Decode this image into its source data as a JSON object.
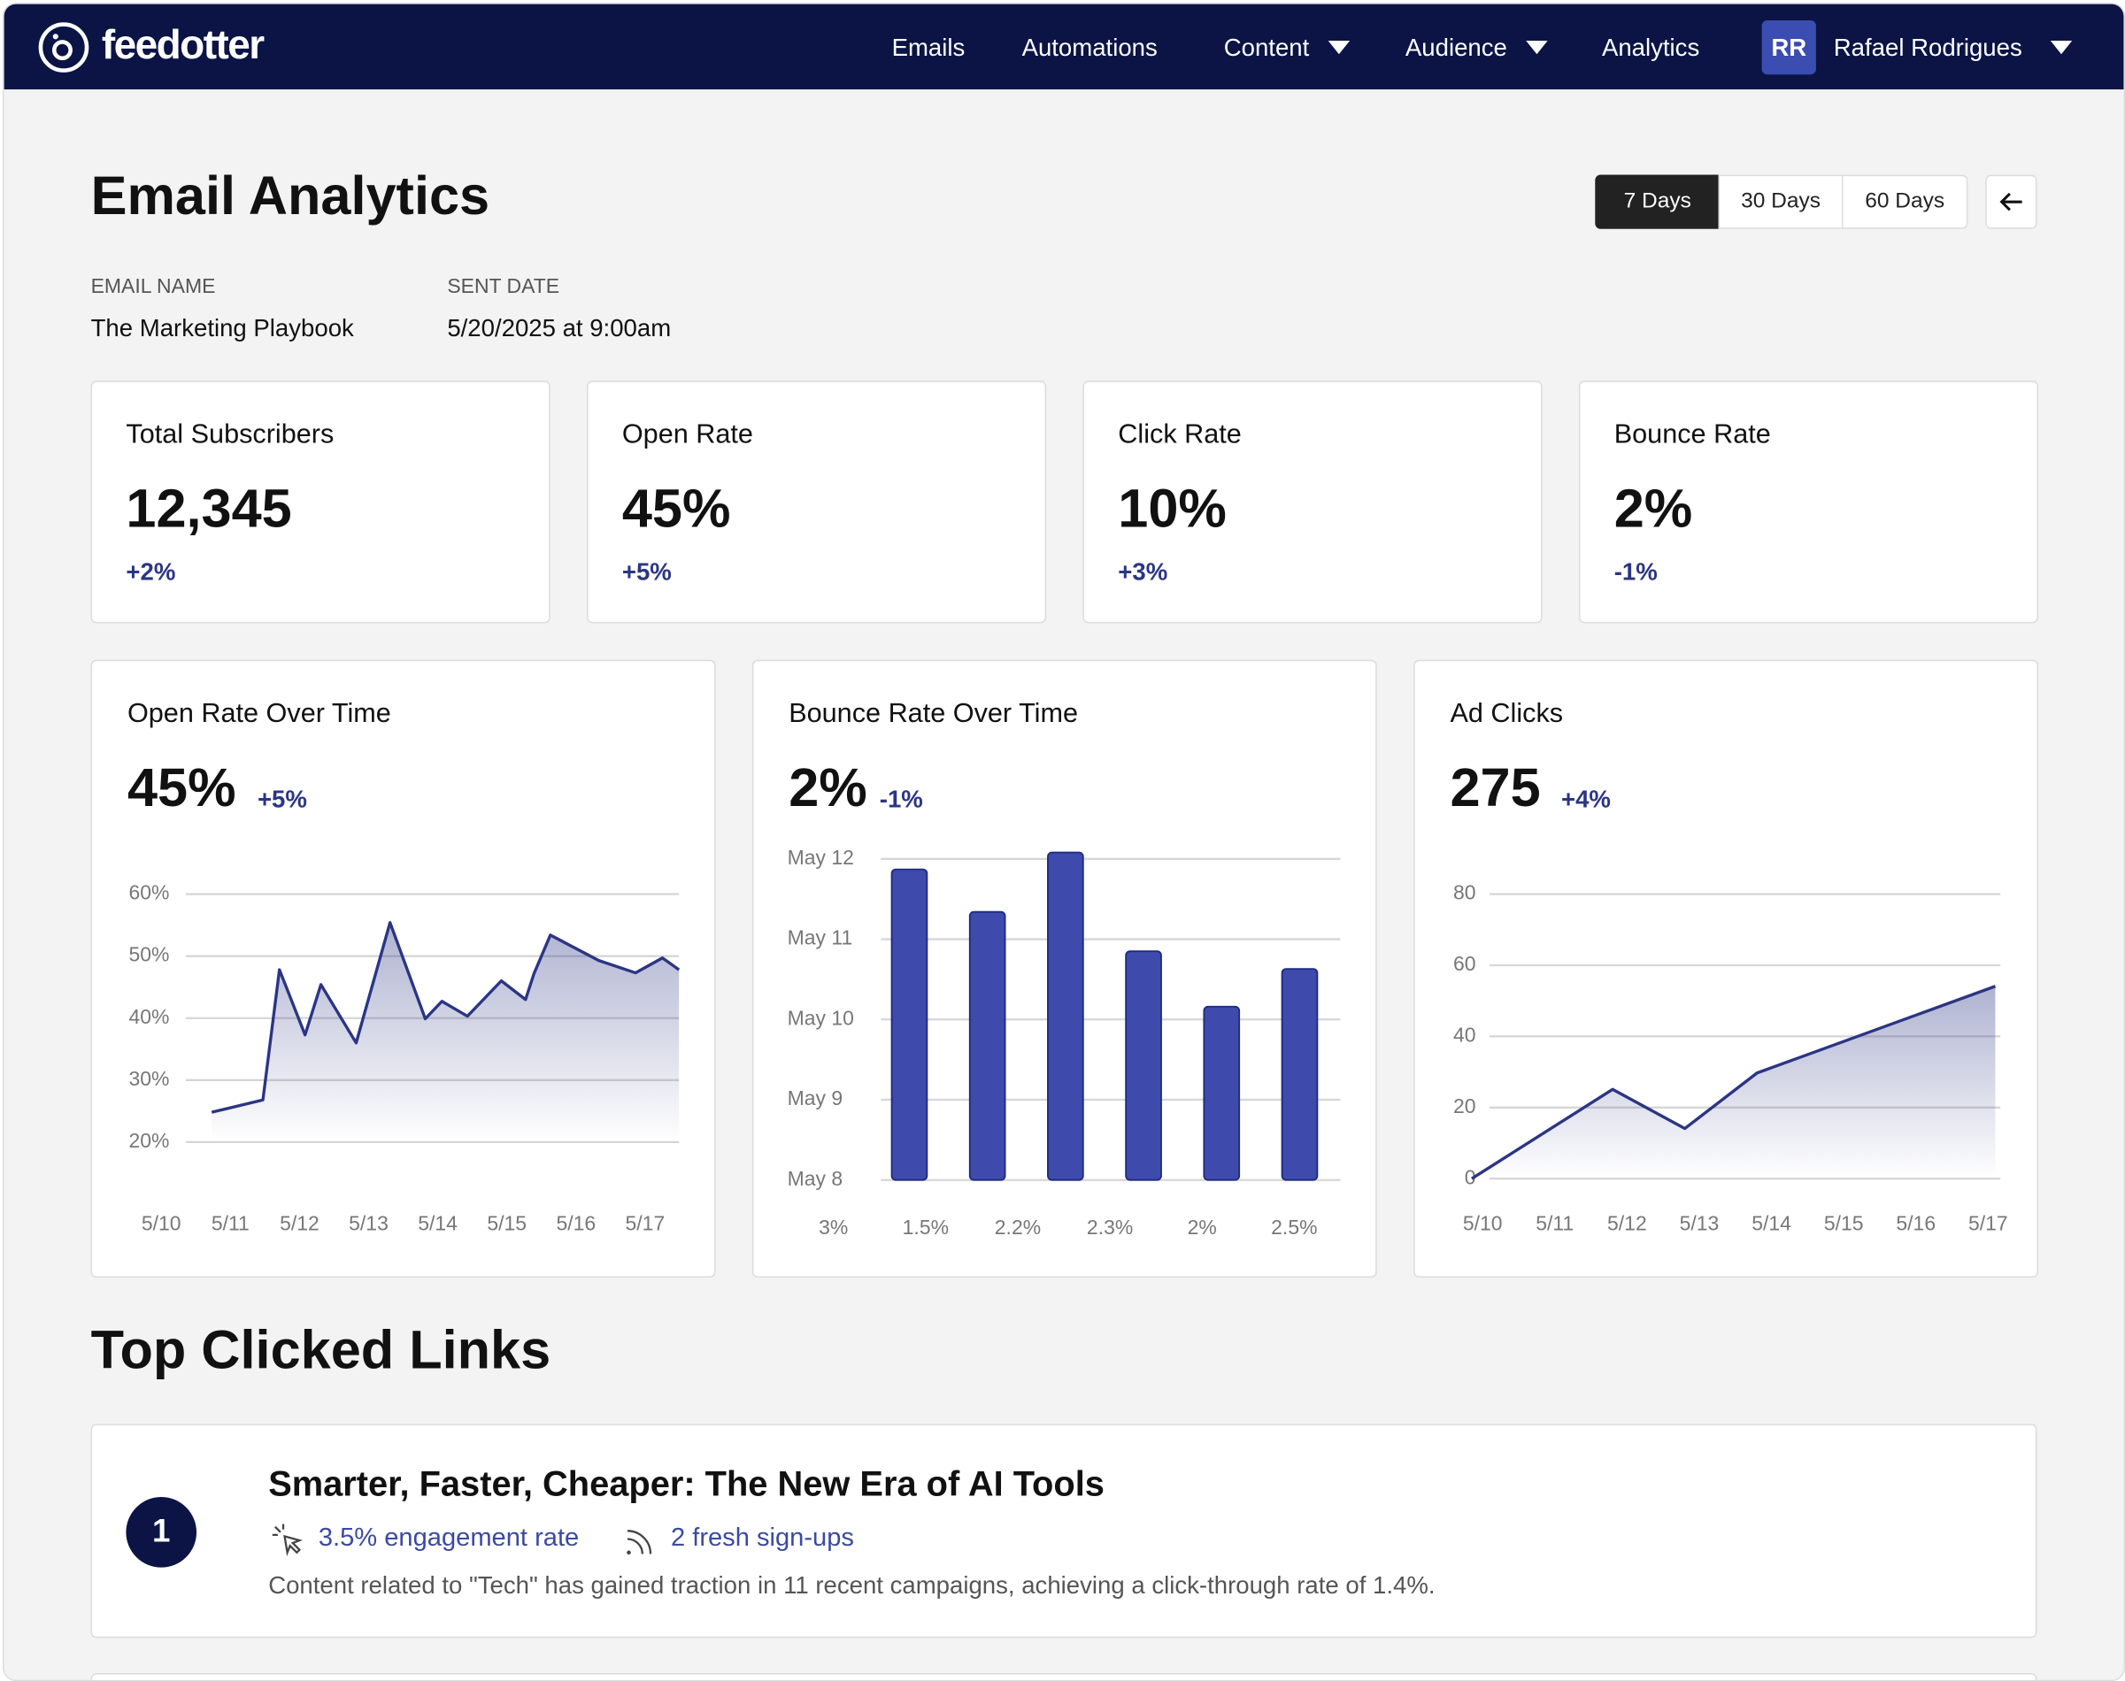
{
  "nav": {
    "brand": "feedotter",
    "items": [
      "Emails",
      "Automations",
      "Content",
      "Audience",
      "Analytics"
    ],
    "user_initials": "RR",
    "user_name": "Rafael Rodrigues"
  },
  "header": {
    "title": "Email Analytics",
    "ranges": [
      "7 Days",
      "30 Days",
      "60 Days"
    ],
    "meta": [
      {
        "label": "EMAIL NAME",
        "value": "The Marketing Playbook"
      },
      {
        "label": "SENT DATE",
        "value": "5/20/2025 at 9:00am"
      }
    ]
  },
  "metrics": [
    {
      "label": "Total Subscribers",
      "value": "12,345",
      "change": "+2%"
    },
    {
      "label": "Open Rate",
      "value": "45%",
      "change": "+5%"
    },
    {
      "label": "Click Rate",
      "value": "10%",
      "change": "+3%"
    },
    {
      "label": "Bounce Rate",
      "value": "2%",
      "change": "-1%"
    }
  ],
  "chart_data": [
    {
      "type": "line",
      "title": "Open Rate Over Time",
      "value": "45%",
      "change": "+5%",
      "color": "#2b3584",
      "x": [
        0.73,
        1.47,
        1.71,
        2.08,
        2.31,
        2.82,
        3.31,
        3.82,
        4.06,
        4.43,
        4.92,
        5.27,
        5.39,
        5.63,
        6.33,
        6.86,
        7.25,
        7.49
      ],
      "values": [
        24.8,
        26.8,
        47.8,
        37.3,
        45.4,
        36.0,
        55.4,
        39.9,
        42.7,
        40.3,
        46.0,
        43.0,
        47.1,
        53.4,
        49.3,
        47.3,
        49.7,
        47.8
      ],
      "xlim": [
        0,
        7.5
      ],
      "xticks": [
        {
          "value": 0,
          "label": "5/10"
        },
        {
          "value": 1,
          "label": "5/11"
        },
        {
          "value": 2,
          "label": "5/12"
        },
        {
          "value": 3,
          "label": "5/13"
        },
        {
          "value": 4,
          "label": "5/14"
        },
        {
          "value": 5,
          "label": "5/15"
        },
        {
          "value": 6,
          "label": "5/16"
        },
        {
          "value": 7,
          "label": "5/17"
        }
      ],
      "ylim": [
        20,
        60
      ],
      "yticks": [
        {
          "value": 20,
          "label": "20%"
        },
        {
          "value": 30,
          "label": "30%"
        },
        {
          "value": 40,
          "label": "40%"
        },
        {
          "value": 50,
          "label": "50%"
        },
        {
          "value": 60,
          "label": "60%"
        }
      ],
      "grid": true
    },
    {
      "type": "bar",
      "title": "Bounce Rate Over Time",
      "value": "2%",
      "change": "-1%",
      "color": "#3f4aad",
      "categories": [
        "3%",
        "1.5%",
        "2.2%",
        "2.3%",
        "2%",
        "2.5%"
      ],
      "values": [
        11.87,
        11.34,
        12.08,
        10.85,
        10.16,
        10.63
      ],
      "ylim": [
        8,
        12
      ],
      "yticks": [
        {
          "value": 8,
          "label": "May 8"
        },
        {
          "value": 9,
          "label": "May 9"
        },
        {
          "value": 10,
          "label": "May 10"
        },
        {
          "value": 11,
          "label": "May 11"
        },
        {
          "value": 12,
          "label": "May 12"
        }
      ],
      "grid": true
    },
    {
      "type": "line",
      "title": "Ad Clicks",
      "value": "275",
      "change": "+4%",
      "color": "#2b3584",
      "x": [
        -0.15,
        1.8,
        2.8,
        3.8,
        7.1
      ],
      "values": [
        0,
        25.1,
        14.1,
        29.7,
        54.1
      ],
      "xlim": [
        0,
        7
      ],
      "xticks": [
        {
          "value": 0,
          "label": "5/10"
        },
        {
          "value": 1,
          "label": "5/11"
        },
        {
          "value": 2,
          "label": "5/12"
        },
        {
          "value": 3,
          "label": "5/13"
        },
        {
          "value": 4,
          "label": "5/14"
        },
        {
          "value": 5,
          "label": "5/15"
        },
        {
          "value": 6,
          "label": "5/16"
        },
        {
          "value": 7,
          "label": "5/17"
        }
      ],
      "ylim": [
        0,
        80
      ],
      "yticks": [
        0,
        20,
        40,
        60,
        80
      ],
      "grid": true
    }
  ],
  "links": {
    "title": "Top Clicked Links",
    "items": [
      {
        "rank": "1",
        "title": "Smarter, Faster, Cheaper: The New Era of AI Tools",
        "engagement": "3.5% engagement rate",
        "signups": "2 fresh sign-ups",
        "description": "Content related to \"Tech\" has gained traction in 11 recent campaigns, achieving a click-through rate of 1.4%."
      }
    ]
  }
}
